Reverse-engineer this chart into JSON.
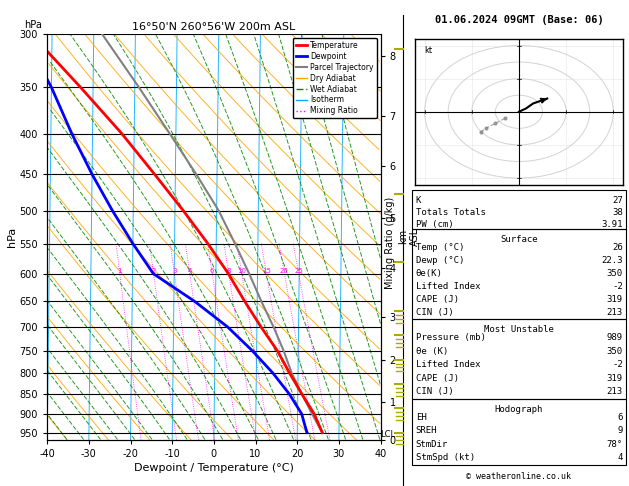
{
  "title_left": "16°50'N 260°56'W 200m ASL",
  "title_right": "01.06.2024 09GMT (Base: 06)",
  "xlabel": "Dewpoint / Temperature (°C)",
  "ylabel_left": "hPa",
  "pressure_levels": [
    300,
    350,
    400,
    450,
    500,
    550,
    600,
    650,
    700,
    750,
    800,
    850,
    900,
    950
  ],
  "t_min": -40,
  "t_max": 40,
  "p_min": 300,
  "p_max": 970,
  "skew_factor": 45.0,
  "temp_profile": {
    "pressure": [
      950,
      900,
      850,
      800,
      750,
      700,
      650,
      600,
      550,
      500,
      450,
      400,
      350,
      300
    ],
    "temperature": [
      26,
      24,
      21,
      18,
      15,
      11,
      7,
      3,
      -2,
      -8,
      -15,
      -23,
      -33,
      -45
    ],
    "color": "#ff0000",
    "linewidth": 2.0
  },
  "dewpoint_profile": {
    "pressure": [
      950,
      900,
      850,
      800,
      750,
      700,
      650,
      600,
      550,
      500,
      450,
      400,
      350,
      300
    ],
    "temperature": [
      22.3,
      21,
      18,
      14,
      9,
      3,
      -5,
      -15,
      -20,
      -25,
      -30,
      -35,
      -40,
      -47
    ],
    "color": "#0000ff",
    "linewidth": 2.0
  },
  "parcel_profile": {
    "pressure": [
      950,
      900,
      850,
      800,
      750,
      700,
      650,
      600,
      550,
      500,
      450,
      400,
      350,
      300
    ],
    "temperature": [
      26,
      23.5,
      21,
      18.5,
      16.5,
      14,
      11,
      8,
      4.5,
      0.5,
      -5,
      -11.5,
      -19,
      -28
    ],
    "color": "#808080",
    "linewidth": 1.5
  },
  "mixing_ratio_lines": [
    1,
    2,
    3,
    4,
    6,
    8,
    10,
    15,
    20,
    25
  ],
  "mixing_ratio_color": "#ff00ff",
  "dry_adiabat_color": "#ffa500",
  "wet_adiabat_color": "#008800",
  "isotherm_color": "#00aaff",
  "km_pressures": [
    970,
    870,
    770,
    680,
    590,
    510,
    440,
    380,
    320
  ],
  "km_values": [
    0,
    1,
    2,
    3,
    4,
    5,
    6,
    7,
    8
  ],
  "lcl_pressure": 955,
  "info_panel": {
    "K": "27",
    "Totals Totals": "38",
    "PW (cm)": "3.91",
    "Surface": {
      "Temp (°C)": "26",
      "Dewp (°C)": "22.3",
      "θe(K)": "350",
      "Lifted Index": "-2",
      "CAPE (J)": "319",
      "CIN (J)": "213"
    },
    "Most Unstable": {
      "Pressure (mb)": "989",
      "θe (K)": "350",
      "Lifted Index": "-2",
      "CAPE (J)": "319",
      "CIN (J)": "213"
    },
    "Hodograph": {
      "EH": "6",
      "SREH": "9",
      "StmDir": "78°",
      "StmSpd (kt)": "4"
    }
  },
  "footer": "© weatheronline.co.uk"
}
